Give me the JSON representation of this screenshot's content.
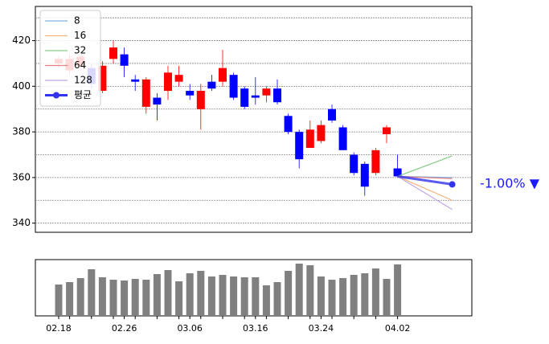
{
  "chart_data": [
    {
      "type": "candlestick",
      "open": [
        410,
        407,
        409,
        408,
        398,
        412,
        414,
        403,
        391,
        395,
        398,
        402,
        398,
        390,
        402,
        402,
        405,
        399,
        396,
        396,
        399,
        387,
        380,
        373,
        376,
        390,
        382,
        370,
        366,
        362,
        379,
        364
      ],
      "high": [
        413,
        414,
        414,
        410,
        411,
        420,
        417,
        405,
        404,
        397,
        409,
        409,
        401,
        401,
        405,
        416,
        406,
        400,
        404,
        400,
        403,
        388,
        381,
        385,
        385,
        392,
        383,
        371,
        367,
        373,
        383,
        370
      ],
      "low": [
        408,
        405,
        407,
        399,
        397,
        410,
        404,
        398,
        388,
        385,
        394,
        400,
        394,
        381,
        398,
        400,
        394,
        390,
        392,
        393,
        392,
        379,
        364,
        373,
        375,
        384,
        372,
        361,
        352,
        361,
        375,
        360
      ],
      "close": [
        412,
        412,
        413,
        401,
        409,
        417,
        409,
        402,
        403,
        392,
        406,
        405,
        396,
        398,
        399,
        408,
        395,
        391,
        395,
        399,
        393,
        380,
        368,
        381,
        383,
        385,
        372,
        362,
        356,
        372,
        382,
        360.5
      ],
      "up_color": "#ff0000",
      "down_color": "#0000ff",
      "ylim": [
        336,
        435
      ],
      "yticks": [
        340,
        360,
        380,
        400,
        420
      ],
      "grid": [
        340,
        350,
        360,
        370,
        380,
        390,
        400,
        410,
        420,
        430
      ],
      "legend": "upper left",
      "forecast": {
        "steps": 5,
        "series": [
          {
            "name": "8",
            "color": "#7fb0e0",
            "end": 360
          },
          {
            "name": "16",
            "color": "#f5b27a",
            "end": 350
          },
          {
            "name": "32",
            "color": "#88cc88",
            "end": 369.5
          },
          {
            "name": "64",
            "color": "#e88080",
            "end": 359.5
          },
          {
            "name": "128",
            "color": "#c0a8e8",
            "end": 346
          },
          {
            "name": "평균",
            "color": "#3333ee",
            "end": 357
          }
        ]
      },
      "annotation": "-1.00% ▼"
    },
    {
      "type": "bar",
      "categories": [
        "02.18",
        null,
        null,
        null,
        null,
        null,
        "02.26",
        null,
        null,
        null,
        null,
        null,
        "03.06",
        null,
        null,
        null,
        null,
        null,
        "03.16",
        null,
        null,
        null,
        null,
        null,
        "03.24",
        null,
        null,
        null,
        null,
        null,
        null,
        "04.02"
      ],
      "values": [
        39,
        42,
        47,
        58,
        48,
        45,
        44,
        46,
        45,
        52,
        57,
        43,
        53,
        56,
        49,
        51,
        49,
        48,
        48,
        38,
        42,
        56,
        65,
        63,
        49,
        45,
        47,
        51,
        53,
        59,
        46,
        64
      ],
      "color": "#808080",
      "ylim": [
        0,
        70
      ]
    }
  ]
}
